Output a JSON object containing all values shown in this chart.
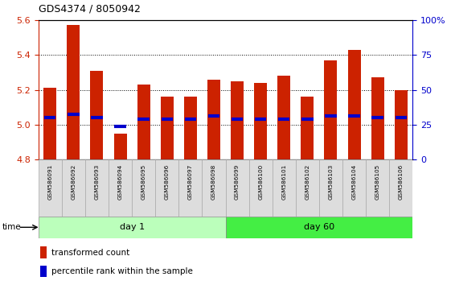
{
  "title": "GDS4374 / 8050942",
  "samples": [
    "GSM586091",
    "GSM586092",
    "GSM586093",
    "GSM586094",
    "GSM586095",
    "GSM586096",
    "GSM586097",
    "GSM586098",
    "GSM586099",
    "GSM586100",
    "GSM586101",
    "GSM586102",
    "GSM586103",
    "GSM586104",
    "GSM586105",
    "GSM586106"
  ],
  "bar_bottom": 4.8,
  "bar_top_values": [
    5.21,
    5.57,
    5.31,
    4.95,
    5.23,
    5.16,
    5.16,
    5.26,
    5.25,
    5.24,
    5.28,
    5.16,
    5.37,
    5.43,
    5.27,
    5.2
  ],
  "percentile_values": [
    5.04,
    5.06,
    5.04,
    4.99,
    5.03,
    5.03,
    5.03,
    5.05,
    5.03,
    5.03,
    5.03,
    5.03,
    5.05,
    5.05,
    5.04,
    5.04
  ],
  "day1_group": [
    0,
    7
  ],
  "day60_group": [
    8,
    15
  ],
  "ylim_left": [
    4.8,
    5.6
  ],
  "ylim_right": [
    0,
    100
  ],
  "yticks_left": [
    4.8,
    5.0,
    5.2,
    5.4,
    5.6
  ],
  "yticks_right": [
    0,
    25,
    50,
    75,
    100
  ],
  "bar_color": "#CC2200",
  "percentile_color": "#0000CC",
  "day1_color": "#BBFFBB",
  "day60_color": "#44EE44",
  "left_tick_color": "#CC2200",
  "right_tick_color": "#0000CC",
  "grid_color": "#000000",
  "bar_width": 0.55,
  "figsize": [
    5.61,
    3.54
  ],
  "dpi": 100
}
